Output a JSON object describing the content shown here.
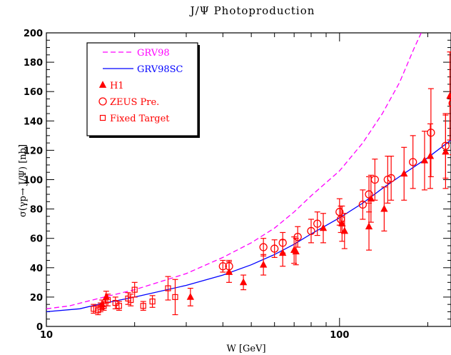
{
  "chart_data": {
    "type": "scatter",
    "title": "J/Ψ Photoproduction",
    "xlabel": "W [GeV]",
    "ylabel": "σ(γp→ J/Ψ) [nb]",
    "xscale": "log",
    "xlim": [
      10,
      240
    ],
    "ylim": [
      0,
      200
    ],
    "x_tick_labels": [
      "10",
      "100"
    ],
    "y_ticks": [
      0,
      20,
      40,
      60,
      80,
      100,
      120,
      140,
      160,
      180,
      200
    ],
    "legend_position": "top-left",
    "curves": [
      {
        "name": "GRV98",
        "style": "dashed",
        "color": "#ff00ff",
        "points": [
          [
            10,
            12
          ],
          [
            12,
            14
          ],
          [
            15,
            19
          ],
          [
            20,
            25
          ],
          [
            30,
            36
          ],
          [
            40,
            47
          ],
          [
            50,
            57
          ],
          [
            60,
            67
          ],
          [
            70,
            78
          ],
          [
            80,
            89
          ],
          [
            100,
            106
          ],
          [
            120,
            125
          ],
          [
            140,
            145
          ],
          [
            160,
            166
          ],
          [
            180,
            190
          ],
          [
            190,
            200
          ]
        ]
      },
      {
        "name": "GRV98SC",
        "style": "solid",
        "color": "#0000ff",
        "points": [
          [
            10,
            10
          ],
          [
            13,
            12
          ],
          [
            15,
            15
          ],
          [
            20,
            20
          ],
          [
            30,
            28
          ],
          [
            40,
            35
          ],
          [
            50,
            42
          ],
          [
            60,
            49
          ],
          [
            70,
            56
          ],
          [
            80,
            63
          ],
          [
            100,
            74
          ],
          [
            120,
            84
          ],
          [
            140,
            94
          ],
          [
            160,
            102
          ],
          [
            200,
            115
          ],
          [
            240,
            127
          ]
        ]
      }
    ],
    "series": [
      {
        "name": "H1",
        "marker": "triangle",
        "color": "#ff0000",
        "points": [
          {
            "x": 15.5,
            "y": 15,
            "err": 3
          },
          {
            "x": 16,
            "y": 20,
            "err": 4
          },
          {
            "x": 31,
            "y": 20,
            "err": 6
          },
          {
            "x": 42,
            "y": 37,
            "err": 7
          },
          {
            "x": 47,
            "y": 30,
            "err": 5
          },
          {
            "x": 55,
            "y": 42,
            "err": 7
          },
          {
            "x": 64,
            "y": 50,
            "err": 9
          },
          {
            "x": 70,
            "y": 52,
            "err": 9
          },
          {
            "x": 71,
            "y": 51,
            "err": 9
          },
          {
            "x": 88,
            "y": 67,
            "err": 10
          },
          {
            "x": 102,
            "y": 70,
            "err": 12
          },
          {
            "x": 104,
            "y": 65,
            "err": 12
          },
          {
            "x": 126,
            "y": 68,
            "err": 16
          },
          {
            "x": 128,
            "y": 87,
            "err": 16
          },
          {
            "x": 142,
            "y": 80,
            "err": 15
          },
          {
            "x": 166,
            "y": 104,
            "err": 18
          },
          {
            "x": 195,
            "y": 113,
            "err": 20
          },
          {
            "x": 204,
            "y": 116,
            "err": 22
          },
          {
            "x": 230,
            "y": 119,
            "err": 25
          },
          {
            "x": 238,
            "y": 157,
            "err": 30
          }
        ]
      },
      {
        "name": "ZEUS Pre.",
        "marker": "circle",
        "color": "#ff0000",
        "points": [
          {
            "x": 40,
            "y": 41,
            "err": 4
          },
          {
            "x": 42,
            "y": 41,
            "err": 4
          },
          {
            "x": 55,
            "y": 54,
            "err": 6
          },
          {
            "x": 60,
            "y": 53,
            "err": 6
          },
          {
            "x": 64,
            "y": 57,
            "err": 7
          },
          {
            "x": 72,
            "y": 61,
            "err": 7
          },
          {
            "x": 80,
            "y": 65,
            "err": 8
          },
          {
            "x": 84,
            "y": 70,
            "err": 8
          },
          {
            "x": 100,
            "y": 78,
            "err": 9
          },
          {
            "x": 101,
            "y": 73,
            "err": 9
          },
          {
            "x": 120,
            "y": 83,
            "err": 10
          },
          {
            "x": 126,
            "y": 90,
            "err": 12
          },
          {
            "x": 132,
            "y": 100,
            "err": 14
          },
          {
            "x": 146,
            "y": 100,
            "err": 16
          },
          {
            "x": 150,
            "y": 101,
            "err": 15
          },
          {
            "x": 178,
            "y": 112,
            "err": 18
          },
          {
            "x": 205,
            "y": 132,
            "err": 30
          },
          {
            "x": 230,
            "y": 123,
            "err": 22
          },
          {
            "x": 243,
            "y": 152,
            "err": 35
          }
        ]
      },
      {
        "name": "Fixed Target",
        "marker": "square",
        "color": "#ff0000",
        "points": [
          {
            "x": 14.5,
            "y": 12,
            "err": 3
          },
          {
            "x": 15,
            "y": 11,
            "err": 3
          },
          {
            "x": 15.3,
            "y": 13,
            "err": 3
          },
          {
            "x": 15.7,
            "y": 14,
            "err": 3
          },
          {
            "x": 16.2,
            "y": 18,
            "err": 4
          },
          {
            "x": 17.2,
            "y": 16,
            "err": 4
          },
          {
            "x": 17.7,
            "y": 14,
            "err": 3
          },
          {
            "x": 19,
            "y": 19,
            "err": 4
          },
          {
            "x": 19.4,
            "y": 18,
            "err": 4
          },
          {
            "x": 20,
            "y": 25,
            "err": 5
          },
          {
            "x": 21.4,
            "y": 14,
            "err": 3
          },
          {
            "x": 23,
            "y": 17,
            "err": 4
          },
          {
            "x": 26,
            "y": 26,
            "err": 8
          },
          {
            "x": 27.5,
            "y": 20,
            "err": 12
          }
        ]
      }
    ]
  }
}
